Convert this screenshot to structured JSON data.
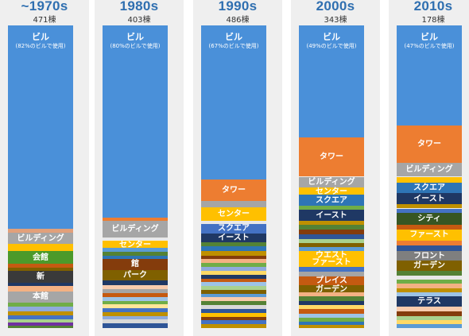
{
  "chart_data": {
    "type": "bar",
    "stacked": true,
    "normalized": true,
    "colors": {
      "top_word": "#4a90d9",
      "heading": "#2f6fb0",
      "column_background": "#efefef"
    },
    "decades": [
      {
        "label": "~1970s",
        "count": "471棟",
        "top_word": "ビル",
        "top_share": "(82%のビルで使用)",
        "labeled_segments": [
          {
            "label": "ビルディング",
            "from": 0.685,
            "to": 0.722,
            "color": "#a6a6a6"
          },
          {
            "label": "会館",
            "from": 0.745,
            "to": 0.788,
            "color": "#4c9a2a"
          },
          {
            "label": "新",
            "from": 0.812,
            "to": 0.85,
            "color": "#3a3a3a"
          },
          {
            "label": "本館",
            "from": 0.88,
            "to": 0.915,
            "color": "#a6a6a6"
          }
        ],
        "filler_segments": [
          {
            "from": 0.672,
            "to": 0.685,
            "color": "#e2a07a"
          },
          {
            "from": 0.722,
            "to": 0.745,
            "color": "#ffc000"
          },
          {
            "from": 0.788,
            "to": 0.8,
            "color": "#c55a11"
          },
          {
            "from": 0.8,
            "to": 0.812,
            "color": "#7f6000"
          },
          {
            "from": 0.85,
            "to": 0.862,
            "color": "#1f3864"
          },
          {
            "from": 0.862,
            "to": 0.88,
            "color": "#f4b183"
          },
          {
            "from": 0.915,
            "to": 0.93,
            "color": "#70ad47"
          },
          {
            "from": 0.93,
            "to": 0.945,
            "color": "#8faadc"
          },
          {
            "from": 0.945,
            "to": 0.958,
            "color": "#bf9000"
          },
          {
            "from": 0.958,
            "to": 0.97,
            "color": "#4472c4"
          },
          {
            "from": 0.97,
            "to": 0.982,
            "color": "#a9d18e"
          },
          {
            "from": 0.982,
            "to": 0.992,
            "color": "#7030a0"
          },
          {
            "from": 0.992,
            "to": 1.0,
            "color": "#548235"
          }
        ]
      },
      {
        "label": "1980s",
        "count": "403棟",
        "top_word": "ビル",
        "top_share": "(80%のビルで使用)",
        "labeled_segments": [
          {
            "label": "ビルディング",
            "from": 0.645,
            "to": 0.7,
            "color": "#a6a6a6"
          },
          {
            "label": "センター",
            "from": 0.71,
            "to": 0.735,
            "color": "#ffc000"
          },
          {
            "label": "館",
            "from": 0.772,
            "to": 0.808,
            "color": "#843c0c"
          },
          {
            "label": "パーク",
            "from": 0.808,
            "to": 0.843,
            "color": "#7f6000"
          }
        ],
        "filler_segments": [
          {
            "from": 0.635,
            "to": 0.645,
            "color": "#ed7d31"
          },
          {
            "from": 0.7,
            "to": 0.71,
            "color": "#e8e8e8"
          },
          {
            "from": 0.735,
            "to": 0.748,
            "color": "#5b9bd5"
          },
          {
            "from": 0.748,
            "to": 0.76,
            "color": "#548235"
          },
          {
            "from": 0.76,
            "to": 0.772,
            "color": "#2e75b6"
          },
          {
            "from": 0.843,
            "to": 0.858,
            "color": "#1f3864"
          },
          {
            "from": 0.858,
            "to": 0.872,
            "color": "#f8cbad"
          },
          {
            "from": 0.872,
            "to": 0.885,
            "color": "#a5a5a5"
          },
          {
            "from": 0.885,
            "to": 0.898,
            "color": "#c55a11"
          },
          {
            "from": 0.898,
            "to": 0.91,
            "color": "#9dc3e6"
          },
          {
            "from": 0.91,
            "to": 0.922,
            "color": "#70ad47"
          },
          {
            "from": 0.922,
            "to": 0.935,
            "color": "#ffe699"
          },
          {
            "from": 0.935,
            "to": 0.948,
            "color": "#4472c4"
          },
          {
            "from": 0.948,
            "to": 0.96,
            "color": "#bf9000"
          },
          {
            "from": 0.96,
            "to": 0.972,
            "color": "#8faadc"
          },
          {
            "from": 0.972,
            "to": 0.985,
            "color": "#d9d9d9"
          },
          {
            "from": 0.985,
            "to": 1.0,
            "color": "#2f5597"
          }
        ]
      },
      {
        "label": "1990s",
        "count": "486棟",
        "top_word": "ビル",
        "top_share": "(67%のビルで使用)",
        "labeled_segments": [
          {
            "label": "タワー",
            "from": 0.51,
            "to": 0.58,
            "color": "#ed7d31"
          },
          {
            "label": "センター",
            "from": 0.6,
            "to": 0.645,
            "color": "#ffc000"
          },
          {
            "label": "スクエア",
            "from": 0.655,
            "to": 0.687,
            "color": "#4472c4"
          },
          {
            "label": "イースト",
            "from": 0.687,
            "to": 0.717,
            "color": "#1f3864"
          }
        ],
        "filler_segments": [
          {
            "from": 0.58,
            "to": 0.6,
            "color": "#a5a5a5"
          },
          {
            "from": 0.645,
            "to": 0.655,
            "color": "#e8e8e8"
          },
          {
            "from": 0.717,
            "to": 0.73,
            "color": "#548235"
          },
          {
            "from": 0.73,
            "to": 0.745,
            "color": "#2e75b6"
          },
          {
            "from": 0.745,
            "to": 0.76,
            "color": "#bf9000"
          },
          {
            "from": 0.76,
            "to": 0.772,
            "color": "#843c0c"
          },
          {
            "from": 0.772,
            "to": 0.785,
            "color": "#f4b183"
          },
          {
            "from": 0.785,
            "to": 0.798,
            "color": "#70ad47"
          },
          {
            "from": 0.798,
            "to": 0.81,
            "color": "#8faadc"
          },
          {
            "from": 0.81,
            "to": 0.823,
            "color": "#ffd966"
          },
          {
            "from": 0.823,
            "to": 0.836,
            "color": "#1f3864"
          },
          {
            "from": 0.836,
            "to": 0.848,
            "color": "#c55a11"
          },
          {
            "from": 0.848,
            "to": 0.86,
            "color": "#9dc3e6"
          },
          {
            "from": 0.86,
            "to": 0.873,
            "color": "#a9d18e"
          },
          {
            "from": 0.873,
            "to": 0.886,
            "color": "#7f6000"
          },
          {
            "from": 0.886,
            "to": 0.898,
            "color": "#5b9bd5"
          },
          {
            "from": 0.898,
            "to": 0.911,
            "color": "#f8cbad"
          },
          {
            "from": 0.911,
            "to": 0.924,
            "color": "#548235"
          },
          {
            "from": 0.924,
            "to": 0.936,
            "color": "#d9d9d9"
          },
          {
            "from": 0.936,
            "to": 0.949,
            "color": "#2f5597"
          },
          {
            "from": 0.949,
            "to": 0.962,
            "color": "#ffc000"
          },
          {
            "from": 0.962,
            "to": 0.975,
            "color": "#843c0c"
          },
          {
            "from": 0.975,
            "to": 0.988,
            "color": "#4472c4"
          },
          {
            "from": 0.988,
            "to": 1.0,
            "color": "#bf9000"
          }
        ]
      },
      {
        "label": "2000s",
        "count": "343棟",
        "top_word": "ビル",
        "top_share": "(49%のビルで使用)",
        "labeled_segments": [
          {
            "label": "タワー",
            "from": 0.37,
            "to": 0.5,
            "color": "#ed7d31"
          },
          {
            "label": "ビルディング",
            "from": 0.5,
            "to": 0.535,
            "color": "#a6a6a6"
          },
          {
            "label": "センター",
            "from": 0.535,
            "to": 0.56,
            "color": "#ffc000"
          },
          {
            "label": "スクエア",
            "from": 0.56,
            "to": 0.595,
            "color": "#2e75b6"
          },
          {
            "label": "イースト",
            "from": 0.61,
            "to": 0.645,
            "color": "#1f3864"
          },
          {
            "label": "ウエスト",
            "from": 0.745,
            "to": 0.768,
            "color": "#ffc000"
          },
          {
            "label": "ファースト",
            "from": 0.768,
            "to": 0.798,
            "color": "#ffc000"
          },
          {
            "label": "プレイス",
            "from": 0.83,
            "to": 0.857,
            "color": "#c55a11"
          },
          {
            "label": "ガーデン",
            "from": 0.857,
            "to": 0.882,
            "color": "#7f6000"
          }
        ],
        "filler_segments": [
          {
            "from": 0.595,
            "to": 0.61,
            "color": "#70ad47"
          },
          {
            "from": 0.645,
            "to": 0.66,
            "color": "#bf9000"
          },
          {
            "from": 0.66,
            "to": 0.675,
            "color": "#548235"
          },
          {
            "from": 0.675,
            "to": 0.69,
            "color": "#843c0c"
          },
          {
            "from": 0.69,
            "to": 0.705,
            "color": "#2f5597"
          },
          {
            "from": 0.705,
            "to": 0.72,
            "color": "#a9d18e"
          },
          {
            "from": 0.72,
            "to": 0.732,
            "color": "#7f6000"
          },
          {
            "from": 0.732,
            "to": 0.745,
            "color": "#5b9bd5"
          },
          {
            "from": 0.798,
            "to": 0.814,
            "color": "#4472c4"
          },
          {
            "from": 0.814,
            "to": 0.83,
            "color": "#a5a5a5"
          },
          {
            "from": 0.882,
            "to": 0.896,
            "color": "#f4b183"
          },
          {
            "from": 0.896,
            "to": 0.91,
            "color": "#548235"
          },
          {
            "from": 0.91,
            "to": 0.924,
            "color": "#1f3864"
          },
          {
            "from": 0.924,
            "to": 0.938,
            "color": "#ffd966"
          },
          {
            "from": 0.938,
            "to": 0.952,
            "color": "#c55a11"
          },
          {
            "from": 0.952,
            "to": 0.966,
            "color": "#9dc3e6"
          },
          {
            "from": 0.966,
            "to": 0.98,
            "color": "#70ad47"
          },
          {
            "from": 0.98,
            "to": 0.99,
            "color": "#2e75b6"
          },
          {
            "from": 0.99,
            "to": 1.0,
            "color": "#bf9000"
          }
        ]
      },
      {
        "label": "2010s",
        "count": "178棟",
        "top_word": "ビル",
        "top_share": "(47%のビルで使用)",
        "labeled_segments": [
          {
            "label": "タワー",
            "from": 0.33,
            "to": 0.455,
            "color": "#ed7d31"
          },
          {
            "label": "ビルディング",
            "from": 0.455,
            "to": 0.5,
            "color": "#a6a6a6"
          },
          {
            "label": "スクエア",
            "from": 0.52,
            "to": 0.555,
            "color": "#2e75b6"
          },
          {
            "label": "イースト",
            "from": 0.555,
            "to": 0.59,
            "color": "#1f3864"
          },
          {
            "label": "シティ",
            "from": 0.62,
            "to": 0.66,
            "color": "#375623"
          },
          {
            "label": "ファースト",
            "from": 0.675,
            "to": 0.71,
            "color": "#ffc000"
          },
          {
            "label": "フロント",
            "from": 0.745,
            "to": 0.778,
            "color": "#7f7f7f"
          },
          {
            "label": "ガーデン",
            "from": 0.778,
            "to": 0.812,
            "color": "#7f6000"
          },
          {
            "label": "テラス",
            "from": 0.895,
            "to": 0.93,
            "color": "#1f3864"
          }
        ],
        "filler_segments": [
          {
            "from": 0.5,
            "to": 0.52,
            "color": "#ffc000"
          },
          {
            "from": 0.59,
            "to": 0.605,
            "color": "#bf9000"
          },
          {
            "from": 0.605,
            "to": 0.62,
            "color": "#4472c4"
          },
          {
            "from": 0.66,
            "to": 0.675,
            "color": "#c55a11"
          },
          {
            "from": 0.71,
            "to": 0.728,
            "color": "#ed7d31"
          },
          {
            "from": 0.728,
            "to": 0.745,
            "color": "#2f5597"
          },
          {
            "from": 0.812,
            "to": 0.826,
            "color": "#548235"
          },
          {
            "from": 0.826,
            "to": 0.84,
            "color": "#e8e8e8"
          },
          {
            "from": 0.84,
            "to": 0.854,
            "color": "#70ad47"
          },
          {
            "from": 0.854,
            "to": 0.868,
            "color": "#f4b183"
          },
          {
            "from": 0.868,
            "to": 0.882,
            "color": "#bf9000"
          },
          {
            "from": 0.882,
            "to": 0.895,
            "color": "#9dc3e6"
          },
          {
            "from": 0.93,
            "to": 0.945,
            "color": "#f8cbad"
          },
          {
            "from": 0.945,
            "to": 0.96,
            "color": "#843c0c"
          },
          {
            "from": 0.96,
            "to": 0.975,
            "color": "#a9d18e"
          },
          {
            "from": 0.975,
            "to": 0.988,
            "color": "#ffd966"
          },
          {
            "from": 0.988,
            "to": 1.0,
            "color": "#5b9bd5"
          }
        ]
      }
    ]
  }
}
